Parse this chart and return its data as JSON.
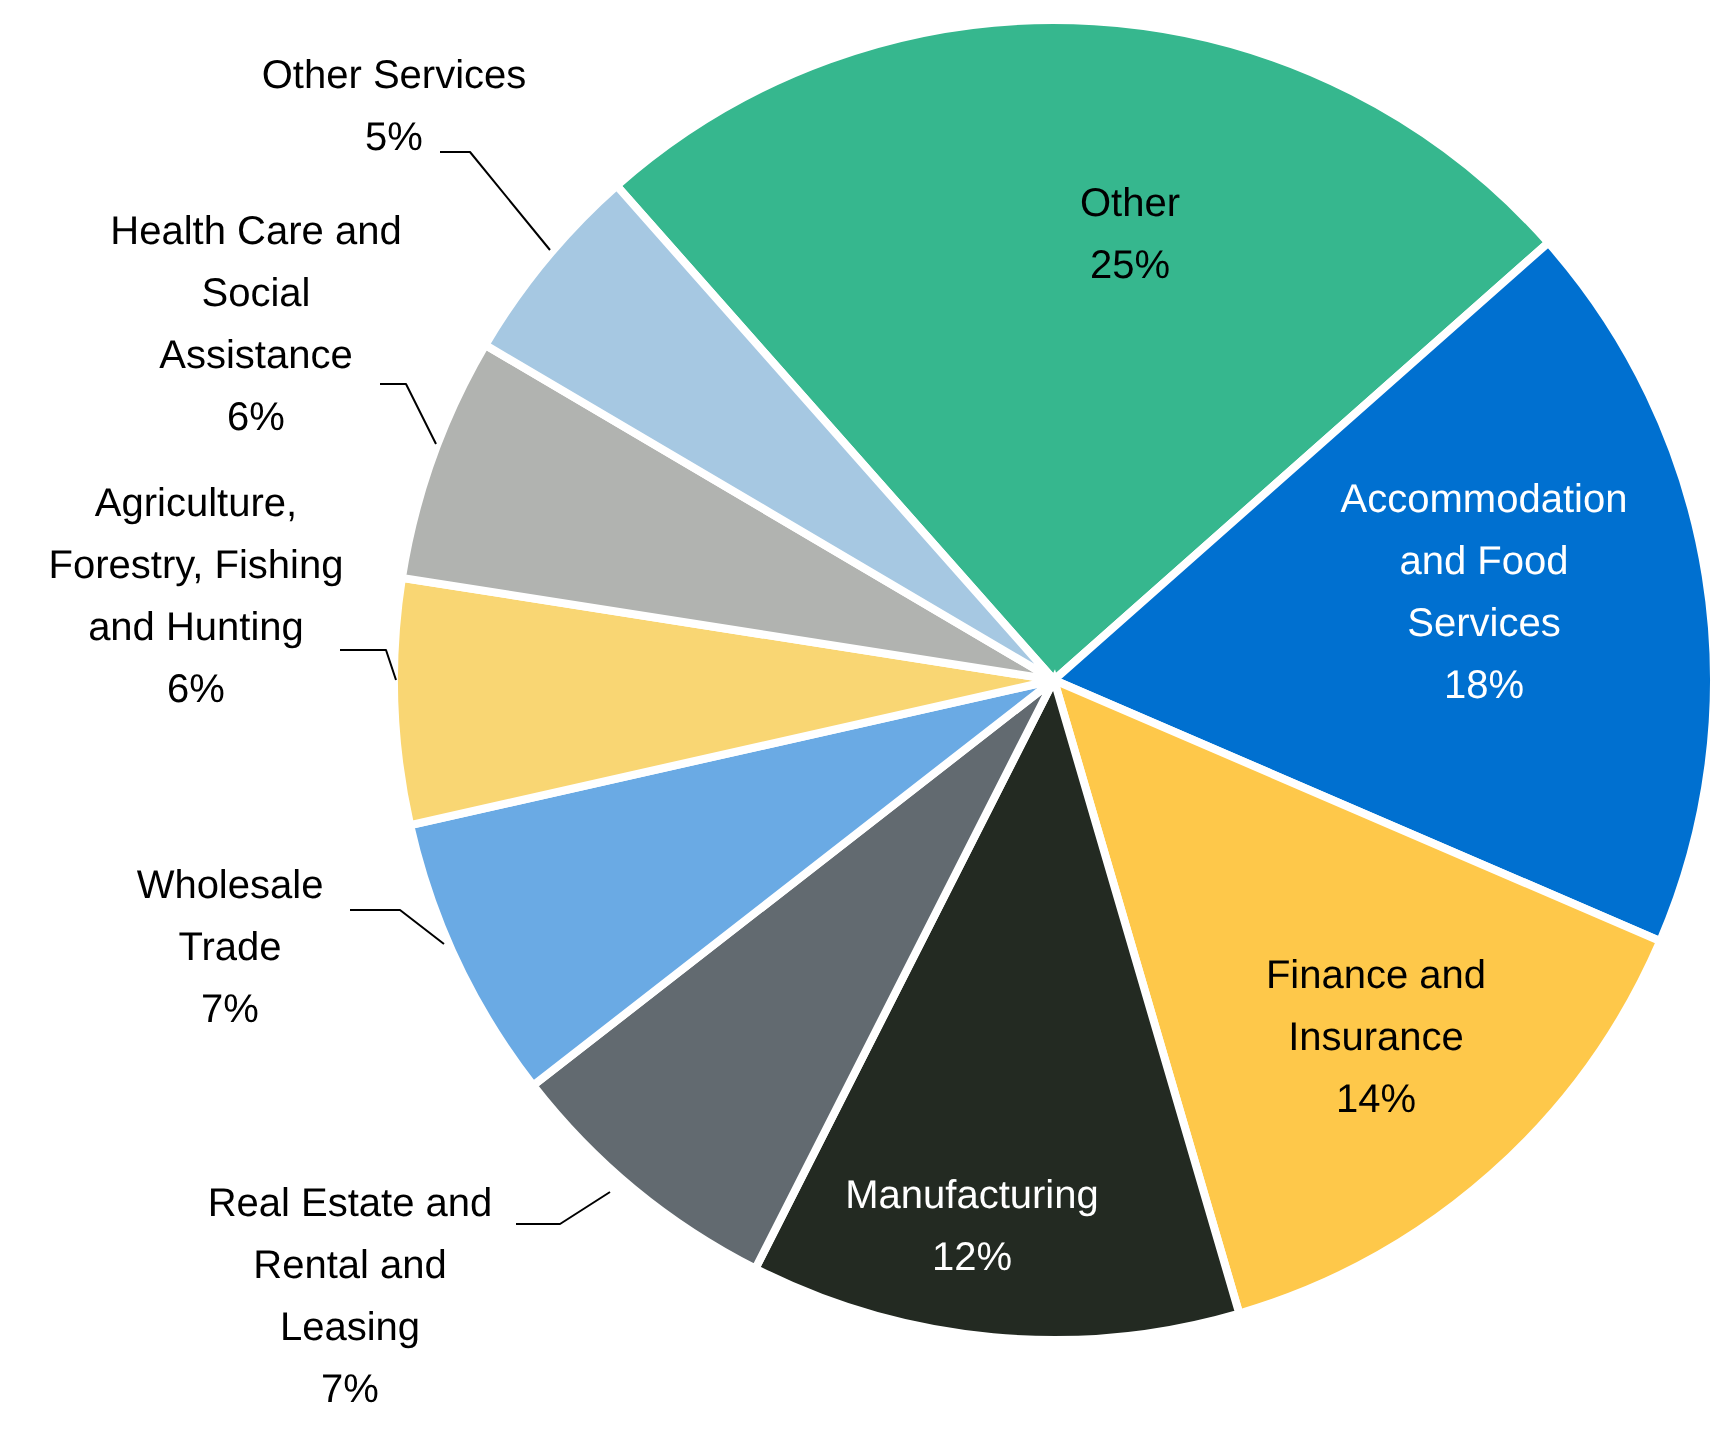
{
  "chart_data": {
    "type": "pie",
    "categories": [
      "Other",
      "Accommodation and Food Services",
      "Finance and Insurance",
      "Manufacturing",
      "Real Estate and Rental and Leasing",
      "Wholesale Trade",
      "Agriculture, Forestry, Fishing and Hunting",
      "Health Care and Social Assistance",
      "Other Services"
    ],
    "values": [
      25,
      18,
      14,
      12,
      7,
      7,
      6,
      6,
      5
    ],
    "value_labels": [
      "25%",
      "18%",
      "14%",
      "12%",
      "7%",
      "7%",
      "6%",
      "6%",
      "5%"
    ],
    "colors": [
      "#36b78e",
      "#0070d0",
      "#fec84a",
      "#232a22",
      "#626a70",
      "#6aaae4",
      "#f9d673",
      "#b1b3b0",
      "#a6c8e2"
    ]
  }
}
